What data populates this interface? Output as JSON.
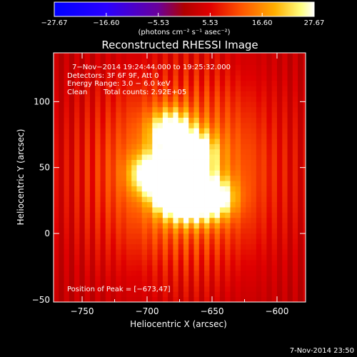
{
  "chart_data": {
    "type": "heatmap",
    "title": "Reconstructed RHESSI Image",
    "xlabel": "Heliocentric X (arcsec)",
    "ylabel": "Heliocentric Y (arcsec)",
    "xlim": [
      -772,
      -578
    ],
    "ylim": [
      -52,
      137
    ],
    "x_ticks": [
      -750,
      -700,
      -650,
      -600
    ],
    "y_ticks": [
      0,
      50,
      100
    ],
    "x_tick_labels": [
      "−750",
      "−700",
      "−650",
      "−600"
    ],
    "y_tick_labels": [
      "0",
      "50",
      "100"
    ],
    "low_edge_label": "−50",
    "colorbar": {
      "range": [
        -27.67,
        27.67
      ],
      "tick_values": [
        -27.67,
        -16.6,
        -5.53,
        5.53,
        16.6,
        27.67
      ],
      "tick_labels": [
        "−27.67",
        "−16.60",
        "−5.53",
        "5.53",
        "16.60",
        "27.67"
      ],
      "unit_label": "(photons cm⁻² s⁻¹ asec⁻²)"
    },
    "annotations": {
      "time_range": "7−Nov−2014 19:24:44.000 to 19:25:32.000",
      "detectors": "Detectors: 3F 6F 9F, Att 0",
      "energy_range": "Energy Range: 3.0 − 6.0 keV",
      "clean_label": "Clean",
      "total_counts": "Total counts: 2.92E+05",
      "peak_position": "Position of Peak = [−673,47]"
    },
    "peak": [
      -673,
      47
    ],
    "sources": [
      {
        "x": -673,
        "y": 47,
        "amp": 27.67
      },
      {
        "x": -682,
        "y": 78,
        "amp": 21
      },
      {
        "x": -697,
        "y": 45,
        "amp": 20
      },
      {
        "x": -663,
        "y": 62,
        "amp": 19
      },
      {
        "x": -680,
        "y": 27,
        "amp": 20
      },
      {
        "x": -665,
        "y": 25,
        "amp": 18
      },
      {
        "x": -648,
        "y": 27,
        "amp": 19
      }
    ]
  },
  "footer": {
    "date": "7-Nov-2014 23:50"
  },
  "colors": {
    "background": "#000000",
    "text": "#ffffff"
  }
}
